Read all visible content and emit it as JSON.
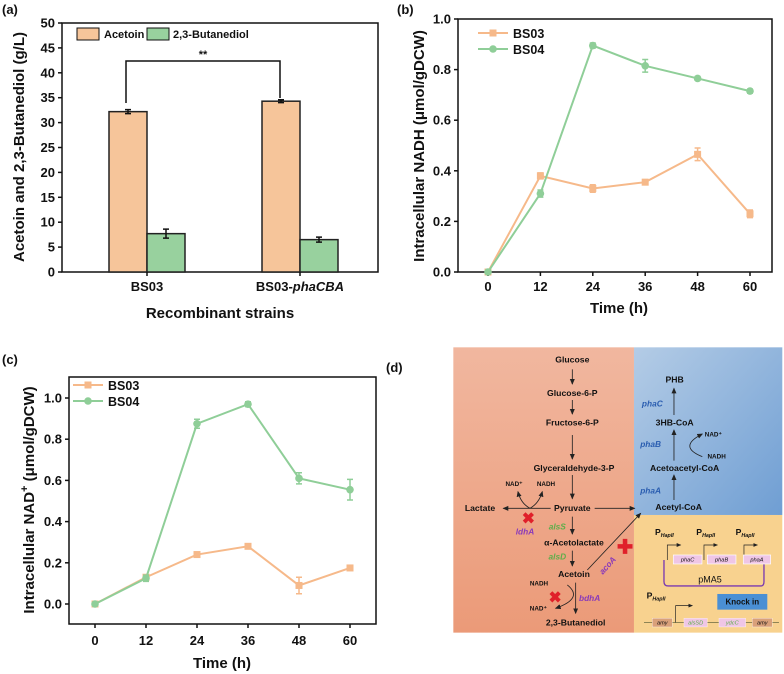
{
  "panel_labels": [
    "(a)",
    "(b)",
    "(c)",
    "(d)"
  ],
  "colors": {
    "bs03": "#f6b98a",
    "bs04": "#8fce98",
    "acetoin": "#f6c59a",
    "butanediol": "#98d19e",
    "gene_blue": "#2a5db0",
    "gene_green": "#5cae4a",
    "gene_purple": "#8a3ab9",
    "knockout_red": "#e0202a"
  },
  "chart_data": [
    {
      "type": "bar",
      "panel": "(a)",
      "categories": [
        "BS03",
        "BS03-phaCBA"
      ],
      "series": [
        {
          "name": "Acetoin",
          "values": [
            32.2,
            34.3
          ],
          "errors": [
            0.4,
            0.3
          ]
        },
        {
          "name": "2,3-Butanediol",
          "values": [
            7.7,
            6.5
          ],
          "errors": [
            0.9,
            0.5
          ]
        }
      ],
      "xlabel": "Recombinant strains",
      "ylabel": "Acetoin and 2,3-Butanediol (g/L)",
      "ylim": [
        0,
        50
      ],
      "yticks": [
        0,
        5,
        10,
        15,
        20,
        25,
        30,
        35,
        40,
        45,
        50
      ],
      "annotation": "**",
      "legend": "top-left"
    },
    {
      "type": "line",
      "panel": "(b)",
      "x": [
        0,
        12,
        24,
        36,
        48,
        60
      ],
      "series": [
        {
          "name": "BS03",
          "values": [
            0,
            0.38,
            0.33,
            0.355,
            0.465,
            0.23
          ],
          "errors": [
            0,
            0.012,
            0.015,
            0.01,
            0.025,
            0.015
          ]
        },
        {
          "name": "BS04",
          "values": [
            0,
            0.31,
            0.895,
            0.815,
            0.765,
            0.715
          ],
          "errors": [
            0,
            0.014,
            0.01,
            0.025,
            0.007,
            0.008
          ]
        }
      ],
      "xlabel": "Time (h)",
      "ylabel": "Intracellular NADH (μmol/gDCW)",
      "ylim": [
        0,
        1.0
      ],
      "yticks": [
        "0.0",
        "0.2",
        "0.4",
        "0.6",
        "0.8",
        "1.0"
      ],
      "xticks": [
        "0",
        "12",
        "24",
        "36",
        "48",
        "60"
      ],
      "legend": "top-left"
    },
    {
      "type": "line",
      "panel": "(c)",
      "x": [
        0,
        12,
        24,
        36,
        48,
        60
      ],
      "series": [
        {
          "name": "BS03",
          "values": [
            0,
            0.13,
            0.24,
            0.28,
            0.09,
            0.175
          ],
          "errors": [
            0,
            0.012,
            0.012,
            0.012,
            0.04,
            0.01
          ]
        },
        {
          "name": "BS04",
          "values": [
            0,
            0.125,
            0.875,
            0.97,
            0.61,
            0.555
          ],
          "errors": [
            0,
            0.015,
            0.022,
            0.012,
            0.027,
            0.05
          ]
        }
      ],
      "xlabel": "Time (h)",
      "ylabel_main": "Intracellular NAD",
      "ylabel_sup": "+",
      "ylabel_unit": " (μmol/gDCW)",
      "ylim": [
        -0.1,
        1.1
      ],
      "yticks": [
        "0.0",
        "0.2",
        "0.4",
        "0.6",
        "0.8",
        "1.0"
      ],
      "xticks": [
        "0",
        "12",
        "24",
        "36",
        "48",
        "60"
      ],
      "legend": "top-left"
    }
  ],
  "diagram": {
    "metabolites": {
      "glucose": "Glucose",
      "g6p": "Glucose-6-P",
      "f6p": "Fructose-6-P",
      "g3p": "Glyceraldehyde-3-P",
      "pyruvate": "Pyruvate",
      "lactate": "Lactate",
      "acetolactate": "α-Acetolactate",
      "acetoin": "Acetoin",
      "butanediol": "2,3-Butanediol",
      "phb": "PHB",
      "hb_coa": "3HB-CoA",
      "acetoacetyl_coa": "Acetoacetyl-CoA",
      "acetyl_coa": "Acetyl-CoA"
    },
    "cofactors": {
      "nad": "NAD⁺",
      "nadh": "NADH"
    },
    "genes": {
      "alsS": "alsS",
      "alsD": "alsD",
      "ldhA": "ldhA",
      "bdhA": "bdhA",
      "acoA": "acoA",
      "phaC": "phaC",
      "phaB": "phaB",
      "phaA": "phaA"
    },
    "promoter": {
      "p": "P",
      "sub": "HapII"
    },
    "plasmid": "pMA5",
    "knock_in": "Knock in",
    "locus": [
      "amy",
      "alsSD",
      "ydcC",
      "amy"
    ]
  }
}
